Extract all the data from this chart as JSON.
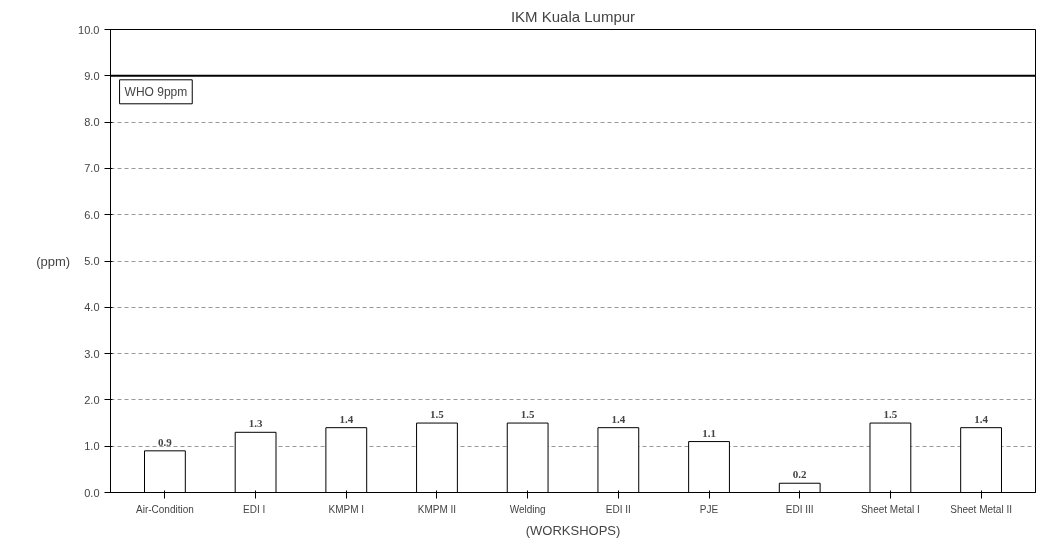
{
  "chart_data": {
    "type": "bar",
    "title": "IKM Kuala Lumpur",
    "xlabel": "(WORKSHOPS)",
    "ylabel": "(ppm)",
    "categories": [
      "Air-Condition",
      "EDI  I",
      "KMPM I",
      "KMPM II",
      "Welding",
      "EDI II",
      "PJE",
      "EDI III",
      "Sheet Metal I",
      "Sheet Metal II"
    ],
    "values": [
      0.9,
      1.3,
      1.4,
      1.5,
      1.5,
      1.4,
      1.1,
      0.2,
      1.5,
      1.4
    ],
    "color": "#ffffff",
    "data_labels": true,
    "grid": "y",
    "ylim": [
      0,
      10
    ],
    "yticks": [
      {
        "value": 0,
        "label": "0.0"
      },
      {
        "value": 1,
        "label": "1.0"
      },
      {
        "value": 2,
        "label": "2.0"
      },
      {
        "value": 3,
        "label": "3.0"
      },
      {
        "value": 4,
        "label": "4.0"
      },
      {
        "value": 5,
        "label": "5.0"
      },
      {
        "value": 6,
        "label": "6.0"
      },
      {
        "value": 7,
        "label": "7.0"
      },
      {
        "value": 8,
        "label": "8.0"
      },
      {
        "value": 9,
        "label": "9.0"
      },
      {
        "value": 10,
        "label": "10.0"
      }
    ],
    "ref_lines": [
      {
        "axis": "y",
        "value": 9,
        "label": "WHO 9ppm",
        "color": "#000000"
      }
    ]
  }
}
